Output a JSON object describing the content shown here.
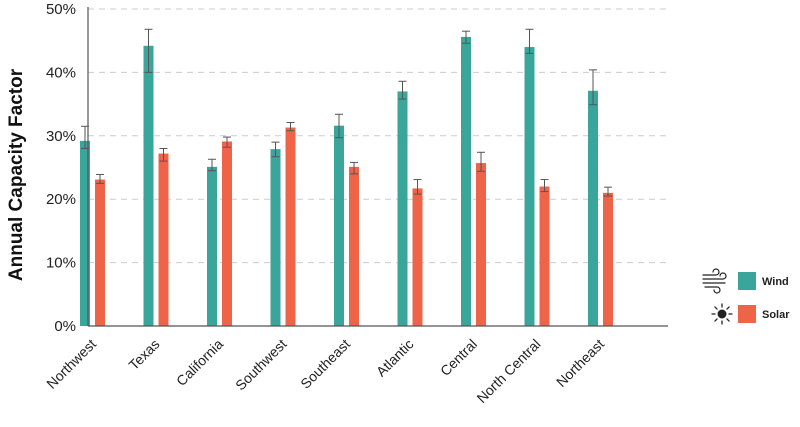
{
  "chart_data": {
    "type": "bar",
    "title": "",
    "xlabel": "",
    "ylabel": "Annual Capacity Factor",
    "ylim": [
      0,
      50
    ],
    "yticks": [
      0,
      10,
      20,
      30,
      40,
      50
    ],
    "ytick_format": "percent",
    "grid": "horizontal dashed",
    "legend_position": "right",
    "categories": [
      "Northwest",
      "Texas",
      "California",
      "Southwest",
      "Southeast",
      "Atlantic",
      "Central",
      "North Central",
      "Northeast"
    ],
    "series": [
      {
        "name": "Wind",
        "icon": "wind-icon",
        "color": "#3aa59a",
        "values": [
          29.2,
          44.2,
          25.1,
          27.9,
          31.6,
          37.0,
          45.6,
          44.0,
          37.1
        ],
        "error_upper": [
          31.5,
          46.8,
          26.3,
          29.0,
          33.4,
          38.6,
          46.5,
          46.8,
          40.4
        ],
        "error_lower": [
          28.0,
          40.0,
          24.5,
          26.7,
          29.7,
          35.8,
          44.6,
          43.0,
          34.9
        ]
      },
      {
        "name": "Solar",
        "icon": "sun-icon",
        "color": "#ef6448",
        "values": [
          23.1,
          27.2,
          29.1,
          31.3,
          25.1,
          21.7,
          25.7,
          22.0,
          21.0
        ],
        "error_upper": [
          23.9,
          28.0,
          29.8,
          32.1,
          25.8,
          23.1,
          27.4,
          23.1,
          21.9
        ],
        "error_lower": [
          22.5,
          26.0,
          28.2,
          30.8,
          24.0,
          20.8,
          24.4,
          21.2,
          20.5
        ]
      }
    ]
  },
  "style": {
    "axis_color": "#555555",
    "grid_color": "#cccccc",
    "error_bar_color": "#555555"
  }
}
